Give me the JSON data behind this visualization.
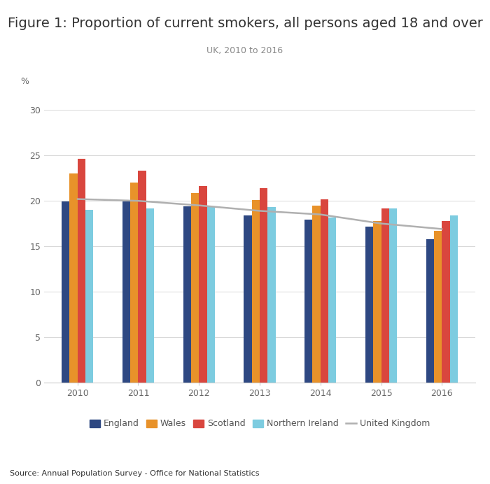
{
  "title": "Figure 1: Proportion of current smokers, all persons aged 18 and over",
  "subtitle": "UK, 2010 to 2016",
  "ylabel": "%",
  "source": "Source: Annual Population Survey - Office for National Statistics",
  "years": [
    2010,
    2011,
    2012,
    2013,
    2014,
    2015,
    2016
  ],
  "england": [
    19.9,
    19.9,
    19.4,
    18.4,
    17.9,
    17.2,
    15.8
  ],
  "wales": [
    23.0,
    22.0,
    20.9,
    20.1,
    19.5,
    17.8,
    16.7
  ],
  "scotland": [
    24.6,
    23.3,
    21.6,
    21.4,
    20.2,
    19.2,
    17.8
  ],
  "northern_ireland": [
    19.0,
    19.2,
    19.3,
    19.3,
    18.2,
    19.2,
    18.4
  ],
  "uk_line": [
    20.2,
    20.0,
    19.5,
    18.9,
    18.5,
    17.5,
    16.9
  ],
  "colors": {
    "england": "#2e4882",
    "wales": "#e8922a",
    "scotland": "#d9463e",
    "northern_ireland": "#7dcce0",
    "uk_line": "#b0b0b0"
  },
  "ylim": [
    0,
    32
  ],
  "yticks": [
    0,
    5,
    10,
    15,
    20,
    25,
    30
  ],
  "background_color": "#ffffff",
  "title_fontsize": 14,
  "subtitle_fontsize": 9,
  "axis_fontsize": 9,
  "legend_fontsize": 9,
  "source_fontsize": 8,
  "bar_width": 0.13
}
